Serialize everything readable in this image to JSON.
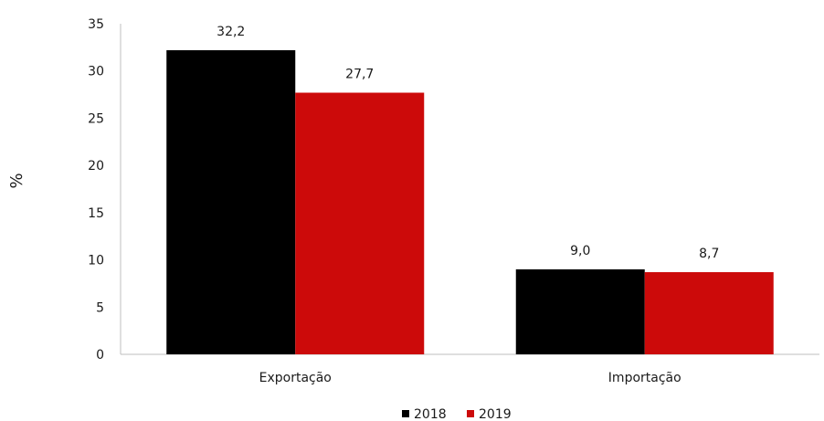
{
  "chart_data": {
    "type": "bar",
    "categories": [
      "Exportação",
      "Importação"
    ],
    "series": [
      {
        "name": "2018",
        "values": [
          32.2,
          9.0
        ],
        "labels": [
          "32,2",
          "9,0"
        ],
        "color": "#000000"
      },
      {
        "name": "2019",
        "values": [
          27.7,
          8.7
        ],
        "labels": [
          "27,7",
          "8,7"
        ],
        "color": "#cc0a0a"
      }
    ],
    "xlabel": "",
    "ylabel": "%",
    "ylim": [
      0,
      35
    ],
    "yticks": [
      "0",
      "5",
      "10",
      "15",
      "20",
      "25",
      "30",
      "35"
    ],
    "grid": false,
    "legend": "bottom"
  }
}
